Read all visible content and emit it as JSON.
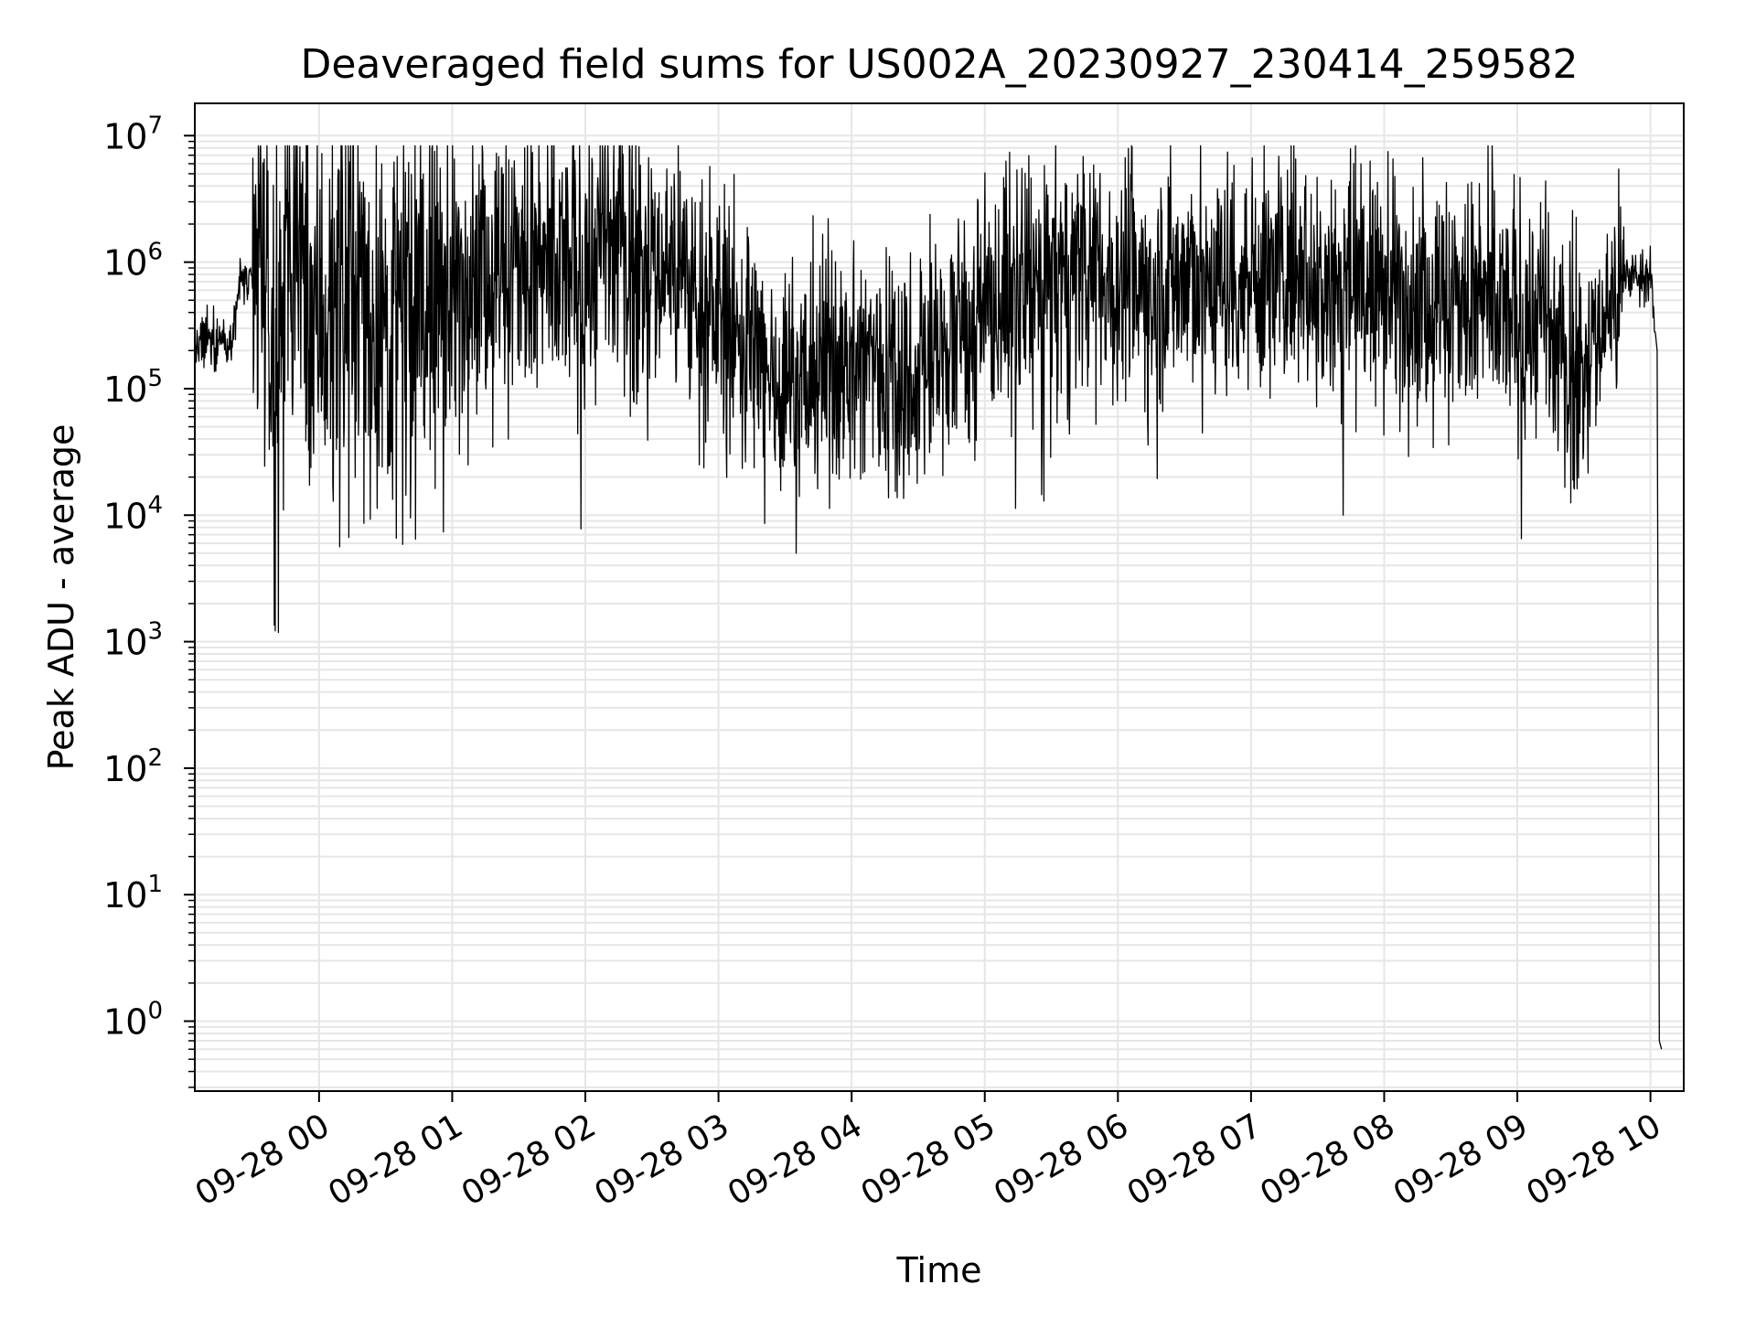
{
  "chart_data": {
    "type": "line",
    "title": "Deaveraged field sums for US002A_20230927_230414_259582",
    "xlabel": "Time",
    "ylabel": "Peak ADU - average",
    "yscale": "log",
    "grid": true,
    "grid_color": "#e6e6e6",
    "line_color": "#000000",
    "xlim": [
      "2023-09-27T23:04",
      "2023-09-28T10:15"
    ],
    "ylim": [
      0.28,
      18000000
    ],
    "x_ticks": [
      {
        "t": "2023-09-28T00:00",
        "label": "09-28 00"
      },
      {
        "t": "2023-09-28T01:00",
        "label": "09-28 01"
      },
      {
        "t": "2023-09-28T02:00",
        "label": "09-28 02"
      },
      {
        "t": "2023-09-28T03:00",
        "label": "09-28 03"
      },
      {
        "t": "2023-09-28T04:00",
        "label": "09-28 04"
      },
      {
        "t": "2023-09-28T05:00",
        "label": "09-28 05"
      },
      {
        "t": "2023-09-28T06:00",
        "label": "09-28 06"
      },
      {
        "t": "2023-09-28T07:00",
        "label": "09-28 07"
      },
      {
        "t": "2023-09-28T08:00",
        "label": "09-28 08"
      },
      {
        "t": "2023-09-28T09:00",
        "label": "09-28 09"
      },
      {
        "t": "2023-09-28T10:00",
        "label": "09-28 10"
      }
    ],
    "y_ticks": [
      {
        "value": 1,
        "base": "10",
        "exp": "0"
      },
      {
        "value": 10,
        "base": "10",
        "exp": "1"
      },
      {
        "value": 100,
        "base": "10",
        "exp": "2"
      },
      {
        "value": 1000,
        "base": "10",
        "exp": "3"
      },
      {
        "value": 10000,
        "base": "10",
        "exp": "4"
      },
      {
        "value": 100000,
        "base": "10",
        "exp": "5"
      },
      {
        "value": 1000000,
        "base": "10",
        "exp": "6"
      },
      {
        "value": 10000000,
        "base": "10",
        "exp": "7"
      }
    ],
    "series": [
      {
        "x": [
          "2023-09-27T23:04",
          "2023-09-27T23:10",
          "2023-09-27T23:20",
          "2023-09-27T23:25",
          "2023-09-27T23:30",
          "2023-09-27T23:35",
          "2023-09-27T23:40",
          "2023-09-27T23:45",
          "2023-09-27T23:50",
          "2023-09-27T23:55",
          "2023-09-28T00:00",
          "2023-09-28T00:10",
          "2023-09-28T00:20",
          "2023-09-28T00:30",
          "2023-09-28T00:40",
          "2023-09-28T00:50",
          "2023-09-28T01:00",
          "2023-09-28T01:10",
          "2023-09-28T01:20",
          "2023-09-28T01:30",
          "2023-09-28T01:40",
          "2023-09-28T01:50",
          "2023-09-28T02:00",
          "2023-09-28T02:10",
          "2023-09-28T02:20",
          "2023-09-28T02:30",
          "2023-09-28T02:40",
          "2023-09-28T02:50",
          "2023-09-28T03:00",
          "2023-09-28T03:10",
          "2023-09-28T03:20",
          "2023-09-28T03:30",
          "2023-09-28T03:40",
          "2023-09-28T03:50",
          "2023-09-28T04:00",
          "2023-09-28T04:10",
          "2023-09-28T04:20",
          "2023-09-28T04:30",
          "2023-09-28T04:40",
          "2023-09-28T04:50",
          "2023-09-28T05:00",
          "2023-09-28T05:10",
          "2023-09-28T05:20",
          "2023-09-28T05:30",
          "2023-09-28T05:40",
          "2023-09-28T05:50",
          "2023-09-28T06:00",
          "2023-09-28T06:10",
          "2023-09-28T06:20",
          "2023-09-28T06:30",
          "2023-09-28T06:40",
          "2023-09-28T06:50",
          "2023-09-28T07:00",
          "2023-09-28T07:10",
          "2023-09-28T07:20",
          "2023-09-28T07:30",
          "2023-09-28T07:40",
          "2023-09-28T07:50",
          "2023-09-28T08:00",
          "2023-09-28T08:10",
          "2023-09-28T08:20",
          "2023-09-28T08:30",
          "2023-09-28T08:40",
          "2023-09-28T08:50",
          "2023-09-28T09:00",
          "2023-09-28T09:10",
          "2023-09-28T09:20",
          "2023-09-28T09:30",
          "2023-09-28T09:40",
          "2023-09-28T09:50",
          "2023-09-28T10:00",
          "2023-09-28T10:02",
          "2023-09-28T10:03",
          "2023-09-28T10:04",
          "2023-09-28T10:05"
        ],
        "y": [
          180000,
          250000,
          250000,
          800000,
          600000,
          900000,
          80000,
          500000,
          1500000,
          800000,
          400000,
          600000,
          500000,
          300000,
          450000,
          500000,
          500000,
          1200000,
          900000,
          1000000,
          700000,
          800000,
          1000000,
          1300000,
          1200000,
          900000,
          1000000,
          500000,
          400000,
          250000,
          150000,
          120000,
          130000,
          150000,
          150000,
          180000,
          140000,
          150000,
          180000,
          300000,
          400000,
          550000,
          600000,
          700000,
          750000,
          800000,
          700000,
          650000,
          700000,
          800000,
          700000,
          750000,
          800000,
          900000,
          850000,
          700000,
          700000,
          650000,
          600000,
          600000,
          550000,
          500000,
          450000,
          400000,
          350000,
          400000,
          150000,
          150000,
          400000,
          800000,
          800000,
          300000,
          200000,
          0.7,
          0.6
        ]
      }
    ],
    "noise": [
      {
        "from": "2023-09-27T23:04",
        "to": "2023-09-27T23:25",
        "sigma": 0.12,
        "max_drop": 0.3
      },
      {
        "from": "2023-09-27T23:25",
        "to": "2023-09-27T23:30",
        "sigma": 0.12,
        "max_drop": 0.4
      },
      {
        "from": "2023-09-27T23:30",
        "to": "2023-09-28T01:00",
        "sigma": 0.8,
        "max_drop": 1.2
      },
      {
        "from": "2023-09-28T01:00",
        "to": "2023-09-28T02:30",
        "sigma": 0.6,
        "max_drop": 1.2
      },
      {
        "from": "2023-09-28T02:30",
        "to": "2023-09-28T05:00",
        "sigma": 0.5,
        "max_drop": 0.7
      },
      {
        "from": "2023-09-28T05:00",
        "to": "2023-09-28T09:30",
        "sigma": 0.5,
        "max_drop": 1.0
      },
      {
        "from": "2023-09-28T09:30",
        "to": "2023-09-28T09:48",
        "sigma": 0.4,
        "max_drop": 0.8
      },
      {
        "from": "2023-09-28T09:48",
        "to": "2023-09-28T10:02",
        "sigma": 0.1,
        "max_drop": 0.2
      }
    ]
  }
}
